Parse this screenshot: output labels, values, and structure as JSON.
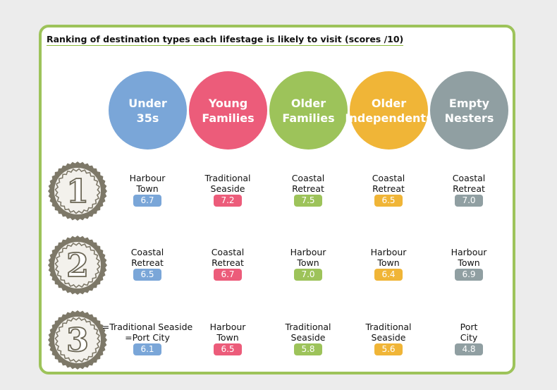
{
  "title": "Ranking of destination types each lifestage is likely to visit (scores /10)",
  "colors": {
    "under35": "#7aa6d8",
    "young_families": "#ec5c7a",
    "older_families": "#9dc35a",
    "older_independents": "#f0b537",
    "empty_nesters": "#909fa2",
    "frame": "#9dc35a",
    "medal": "#7d7868"
  },
  "chart_data": {
    "type": "table",
    "title": "Ranking of destination types each lifestage is likely to visit (scores /10)",
    "columns": [
      "Under\n35s",
      "Young\nFamilies",
      "Older\nFamilies",
      "Older\nIndependents",
      "Empty\nNesters"
    ],
    "ranks": [
      "1",
      "2",
      "3"
    ],
    "rows": [
      [
        {
          "name": "Harbour\nTown",
          "score": "6.7"
        },
        {
          "name": "Traditional\nSeaside",
          "score": "7.2"
        },
        {
          "name": "Coastal\nRetreat",
          "score": "7.5"
        },
        {
          "name": "Coastal\nRetreat",
          "score": "6.5"
        },
        {
          "name": "Coastal\nRetreat",
          "score": "7.0"
        }
      ],
      [
        {
          "name": "Coastal\nRetreat",
          "score": "6.5"
        },
        {
          "name": "Coastal\nRetreat",
          "score": "6.7"
        },
        {
          "name": "Harbour\nTown",
          "score": "7.0"
        },
        {
          "name": "Harbour\nTown",
          "score": "6.4"
        },
        {
          "name": "Harbour\nTown",
          "score": "6.9"
        }
      ],
      [
        {
          "name": "=Traditional Seaside\n=Port City",
          "score": "6.1"
        },
        {
          "name": "Harbour\nTown",
          "score": "6.5"
        },
        {
          "name": "Traditional\nSeaside",
          "score": "5.8"
        },
        {
          "name": "Traditional\nSeaside",
          "score": "5.6"
        },
        {
          "name": "Port\nCity",
          "score": "4.8"
        }
      ]
    ]
  }
}
